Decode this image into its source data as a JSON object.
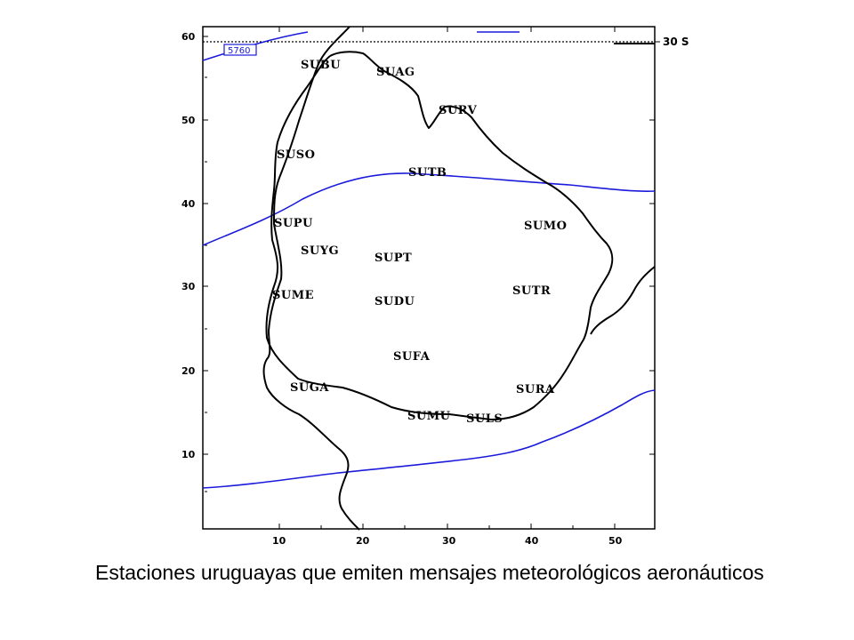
{
  "map": {
    "y_ticks": [
      "60",
      "50",
      "40",
      "30",
      "20",
      "10"
    ],
    "x_ticks": [
      "10",
      "20",
      "30",
      "40",
      "50"
    ],
    "latitude_label": "30 S",
    "contour_label": "5760",
    "stations": [
      {
        "code": "SUBU"
      },
      {
        "code": "SUAG"
      },
      {
        "code": "SURV"
      },
      {
        "code": "SUSO"
      },
      {
        "code": "SUTB"
      },
      {
        "code": "SUPU"
      },
      {
        "code": "SUMO"
      },
      {
        "code": "SUYG"
      },
      {
        "code": "SUPT"
      },
      {
        "code": "SUTR"
      },
      {
        "code": "SUME"
      },
      {
        "code": "SUDU"
      },
      {
        "code": "SUFA"
      },
      {
        "code": "SUGA"
      },
      {
        "code": "SURA"
      },
      {
        "code": "SUMU"
      },
      {
        "code": "SULS"
      }
    ],
    "colors": {
      "border": "#000000",
      "contour": "#1a1adb",
      "frame": "#000000"
    }
  },
  "caption": "Estaciones uruguayas que emiten mensajes meteorológicos aeronáuticos"
}
